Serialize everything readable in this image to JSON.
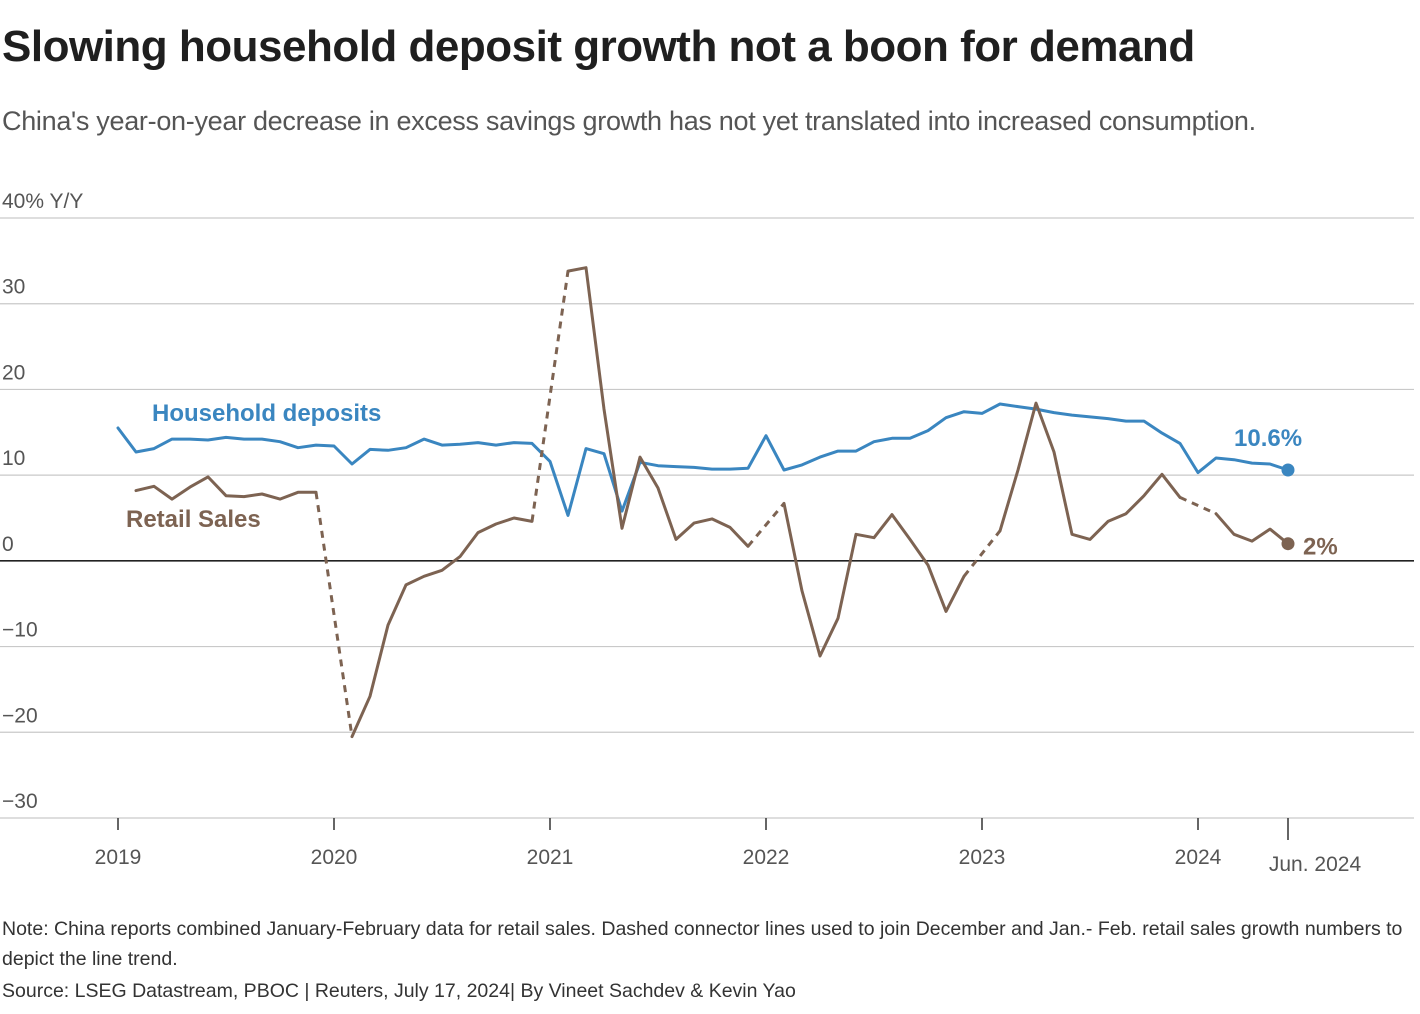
{
  "title": "Slowing household deposit growth not a boon for demand",
  "subtitle": "China's year-on-year decrease in excess savings growth has not yet translated into increased consumption.",
  "note": "Note: China reports combined January-February data for retail sales. Dashed connector lines used to join December and Jan.- Feb. retail sales growth numbers to depict the line trend.",
  "source": "Source: LSEG Datastream, PBOC | Reuters, July 17, 2024| By Vineet Sachdev & Kevin Yao",
  "chart_data": {
    "type": "line",
    "title": "Slowing household deposit growth not a boon for demand",
    "ylabel": "40% Y/Y",
    "ylim": [
      -30,
      40
    ],
    "yticks": [
      {
        "value": 40,
        "label": "40% Y/Y"
      },
      {
        "value": 30,
        "label": "30"
      },
      {
        "value": 20,
        "label": "20"
      },
      {
        "value": 10,
        "label": "10"
      },
      {
        "value": 0,
        "label": "0"
      },
      {
        "value": -10,
        "label": "−10"
      },
      {
        "value": -20,
        "label": "−20"
      },
      {
        "value": -30,
        "label": "−30"
      }
    ],
    "xlim": [
      "2018-12",
      "2024-11"
    ],
    "xticks": [
      {
        "value": "2019-01",
        "label": "2019"
      },
      {
        "value": "2020-01",
        "label": "2020"
      },
      {
        "value": "2021-01",
        "label": "2021"
      },
      {
        "value": "2022-01",
        "label": "2022"
      },
      {
        "value": "2023-01",
        "label": "2023"
      },
      {
        "value": "2024-01",
        "label": "2024"
      },
      {
        "value": "2024-06",
        "label": "Jun. 2024"
      }
    ],
    "grid": true,
    "series": [
      {
        "name": "Household deposits",
        "color": "#3a86c0",
        "end_label": "10.6%",
        "points": [
          [
            "2019-01",
            15.5
          ],
          [
            "2019-02",
            12.7
          ],
          [
            "2019-03",
            13.1
          ],
          [
            "2019-04",
            14.2
          ],
          [
            "2019-05",
            14.2
          ],
          [
            "2019-06",
            14.1
          ],
          [
            "2019-07",
            14.4
          ],
          [
            "2019-08",
            14.2
          ],
          [
            "2019-09",
            14.2
          ],
          [
            "2019-10",
            13.9
          ],
          [
            "2019-11",
            13.2
          ],
          [
            "2019-12",
            13.5
          ],
          [
            "2020-01",
            13.4
          ],
          [
            "2020-02",
            11.3
          ],
          [
            "2020-03",
            13.0
          ],
          [
            "2020-04",
            12.9
          ],
          [
            "2020-05",
            13.2
          ],
          [
            "2020-06",
            14.2
          ],
          [
            "2020-07",
            13.5
          ],
          [
            "2020-08",
            13.6
          ],
          [
            "2020-09",
            13.8
          ],
          [
            "2020-10",
            13.5
          ],
          [
            "2020-11",
            13.8
          ],
          [
            "2020-12",
            13.7
          ],
          [
            "2021-01",
            11.6
          ],
          [
            "2021-02",
            5.3
          ],
          [
            "2021-03",
            13.1
          ],
          [
            "2021-04",
            12.5
          ],
          [
            "2021-05",
            5.8
          ],
          [
            "2021-06",
            11.5
          ],
          [
            "2021-07",
            11.1
          ],
          [
            "2021-08",
            11.0
          ],
          [
            "2021-09",
            10.9
          ],
          [
            "2021-10",
            10.7
          ],
          [
            "2021-11",
            10.7
          ],
          [
            "2021-12",
            10.8
          ],
          [
            "2022-01",
            14.6
          ],
          [
            "2022-02",
            10.6
          ],
          [
            "2022-03",
            11.2
          ],
          [
            "2022-04",
            12.1
          ],
          [
            "2022-05",
            12.8
          ],
          [
            "2022-06",
            12.8
          ],
          [
            "2022-07",
            13.9
          ],
          [
            "2022-08",
            14.3
          ],
          [
            "2022-09",
            14.3
          ],
          [
            "2022-10",
            15.2
          ],
          [
            "2022-11",
            16.7
          ],
          [
            "2022-12",
            17.4
          ],
          [
            "2023-01",
            17.2
          ],
          [
            "2023-02",
            18.3
          ],
          [
            "2023-03",
            18.0
          ],
          [
            "2023-04",
            17.7
          ],
          [
            "2023-05",
            17.3
          ],
          [
            "2023-06",
            17.0
          ],
          [
            "2023-07",
            16.8
          ],
          [
            "2023-08",
            16.6
          ],
          [
            "2023-09",
            16.3
          ],
          [
            "2023-10",
            16.3
          ],
          [
            "2023-11",
            14.9
          ],
          [
            "2023-12",
            13.7
          ],
          [
            "2024-01",
            10.3
          ],
          [
            "2024-02",
            12.0
          ],
          [
            "2024-03",
            11.8
          ],
          [
            "2024-04",
            11.4
          ],
          [
            "2024-05",
            11.3
          ],
          [
            "2024-06",
            10.6
          ]
        ]
      },
      {
        "name": "Retail Sales",
        "color": "#7d6352",
        "end_label": "2%",
        "points": [
          [
            "2019-02",
            8.2
          ],
          [
            "2019-03",
            8.7
          ],
          [
            "2019-04",
            7.2
          ],
          [
            "2019-05",
            8.6
          ],
          [
            "2019-06",
            9.8
          ],
          [
            "2019-07",
            7.6
          ],
          [
            "2019-08",
            7.5
          ],
          [
            "2019-09",
            7.8
          ],
          [
            "2019-10",
            7.2
          ],
          [
            "2019-11",
            8.0
          ],
          [
            "2019-12",
            8.0
          ],
          [
            "2020-02",
            -20.5
          ],
          [
            "2020-03",
            -15.8
          ],
          [
            "2020-04",
            -7.5
          ],
          [
            "2020-05",
            -2.8
          ],
          [
            "2020-06",
            -1.8
          ],
          [
            "2020-07",
            -1.1
          ],
          [
            "2020-08",
            0.5
          ],
          [
            "2020-09",
            3.3
          ],
          [
            "2020-10",
            4.3
          ],
          [
            "2020-11",
            5.0
          ],
          [
            "2020-12",
            4.6
          ],
          [
            "2021-02",
            33.8
          ],
          [
            "2021-03",
            34.2
          ],
          [
            "2021-04",
            17.7
          ],
          [
            "2021-05",
            3.8
          ],
          [
            "2021-06",
            12.1
          ],
          [
            "2021-07",
            8.5
          ],
          [
            "2021-08",
            2.5
          ],
          [
            "2021-09",
            4.4
          ],
          [
            "2021-10",
            4.9
          ],
          [
            "2021-11",
            3.9
          ],
          [
            "2021-12",
            1.7
          ],
          [
            "2022-02",
            6.7
          ],
          [
            "2022-03",
            -3.5
          ],
          [
            "2022-04",
            -11.1
          ],
          [
            "2022-05",
            -6.7
          ],
          [
            "2022-06",
            3.1
          ],
          [
            "2022-07",
            2.7
          ],
          [
            "2022-08",
            5.4
          ],
          [
            "2022-09",
            2.5
          ],
          [
            "2022-10",
            -0.5
          ],
          [
            "2022-11",
            -5.9
          ],
          [
            "2022-12",
            -1.8
          ],
          [
            "2023-02",
            3.5
          ],
          [
            "2023-03",
            10.6
          ],
          [
            "2023-04",
            18.4
          ],
          [
            "2023-05",
            12.7
          ],
          [
            "2023-06",
            3.1
          ],
          [
            "2023-07",
            2.5
          ],
          [
            "2023-08",
            4.6
          ],
          [
            "2023-09",
            5.5
          ],
          [
            "2023-10",
            7.6
          ],
          [
            "2023-11",
            10.1
          ],
          [
            "2023-12",
            7.4
          ],
          [
            "2024-02",
            5.5
          ],
          [
            "2024-03",
            3.1
          ],
          [
            "2024-04",
            2.3
          ],
          [
            "2024-05",
            3.7
          ],
          [
            "2024-06",
            2.0
          ]
        ]
      }
    ]
  }
}
